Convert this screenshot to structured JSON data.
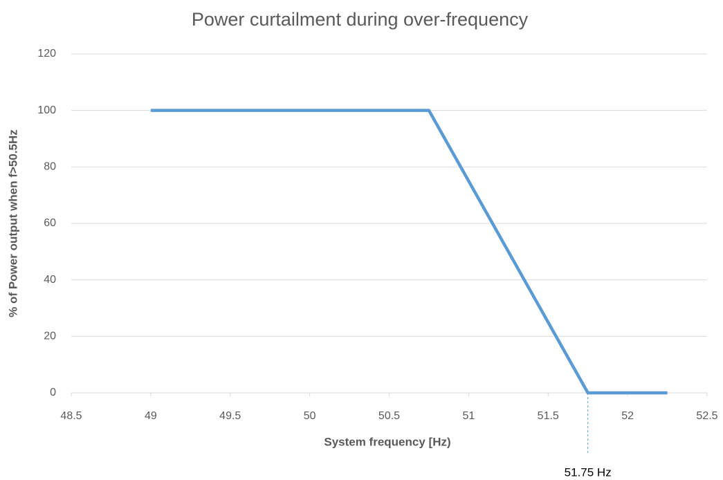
{
  "chart_data": {
    "type": "line",
    "title": "Power curtailment during over-frequency",
    "x_label": "System frequency [Hz)",
    "y_label": "% of Power output when f>50.5Hz",
    "x": [
      49,
      50.75,
      51.75,
      52.25
    ],
    "values": [
      100,
      100,
      0,
      0
    ],
    "color": "#5b9bd5",
    "xlim": [
      48.5,
      52.5
    ],
    "xticks": [
      48.5,
      49,
      49.5,
      50,
      50.5,
      51,
      51.5,
      52,
      52.5
    ],
    "ylim": [
      0,
      120
    ],
    "yticks": [
      0,
      20,
      40,
      60,
      80,
      100,
      120
    ],
    "grid": true,
    "annotations": [
      {
        "text": "51.75 Hz",
        "x": 51.75
      }
    ]
  }
}
